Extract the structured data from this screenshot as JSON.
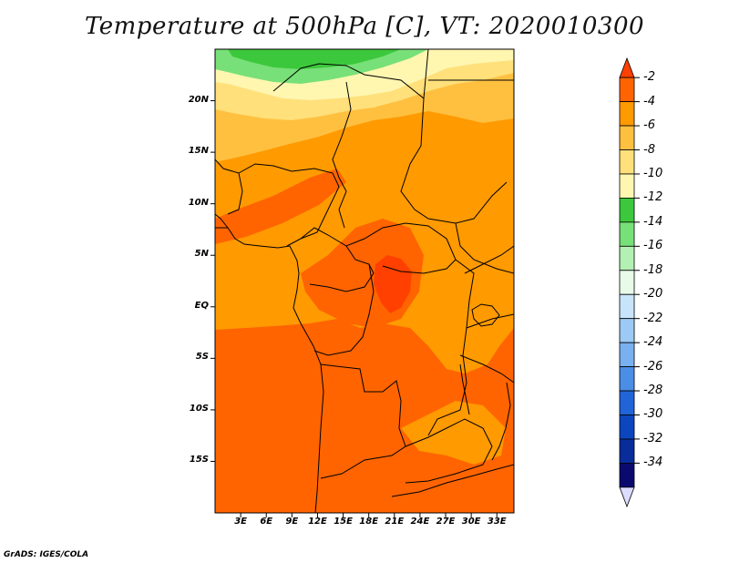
{
  "title": "Temperature at 500hPa [C], VT: 2020010300",
  "credit": "GrADS: IGES/COLA",
  "map": {
    "lon_range": [
      0,
      35
    ],
    "lat_range": [
      -20,
      25
    ],
    "lat_ticks": [
      {
        "value": 20,
        "label": "20N"
      },
      {
        "value": 15,
        "label": "15N"
      },
      {
        "value": 10,
        "label": "10N"
      },
      {
        "value": 5,
        "label": "5N"
      },
      {
        "value": 0,
        "label": "EQ"
      },
      {
        "value": -5,
        "label": "5S"
      },
      {
        "value": -10,
        "label": "10S"
      },
      {
        "value": -15,
        "label": "15S"
      }
    ],
    "lon_ticks": [
      {
        "value": 3,
        "label": "3E"
      },
      {
        "value": 6,
        "label": "6E"
      },
      {
        "value": 9,
        "label": "9E"
      },
      {
        "value": 12,
        "label": "12E"
      },
      {
        "value": 15,
        "label": "15E"
      },
      {
        "value": 18,
        "label": "18E"
      },
      {
        "value": 21,
        "label": "21E"
      },
      {
        "value": 24,
        "label": "24E"
      },
      {
        "value": 27,
        "label": "27E"
      },
      {
        "value": 30,
        "label": "30E"
      },
      {
        "value": 33,
        "label": "33E"
      }
    ]
  },
  "colorbar": {
    "labels": [
      "-2",
      "-4",
      "-6",
      "-8",
      "-10",
      "-12",
      "-14",
      "-16",
      "-18",
      "-20",
      "-22",
      "-24",
      "-26",
      "-28",
      "-30",
      "-32",
      "-34"
    ],
    "colors": [
      "#ff4000",
      "#ff6400",
      "#ff9a00",
      "#ffc040",
      "#ffe07a",
      "#fff6b0",
      "#3cc83c",
      "#78e078",
      "#b4f0b4",
      "#e8fae8",
      "#c8e4fa",
      "#9ccaf4",
      "#78b0f0",
      "#4a8ee6",
      "#2064d8",
      "#0c46be",
      "#082c9a",
      "#0a0a6e",
      "#dcdcff"
    ]
  }
}
